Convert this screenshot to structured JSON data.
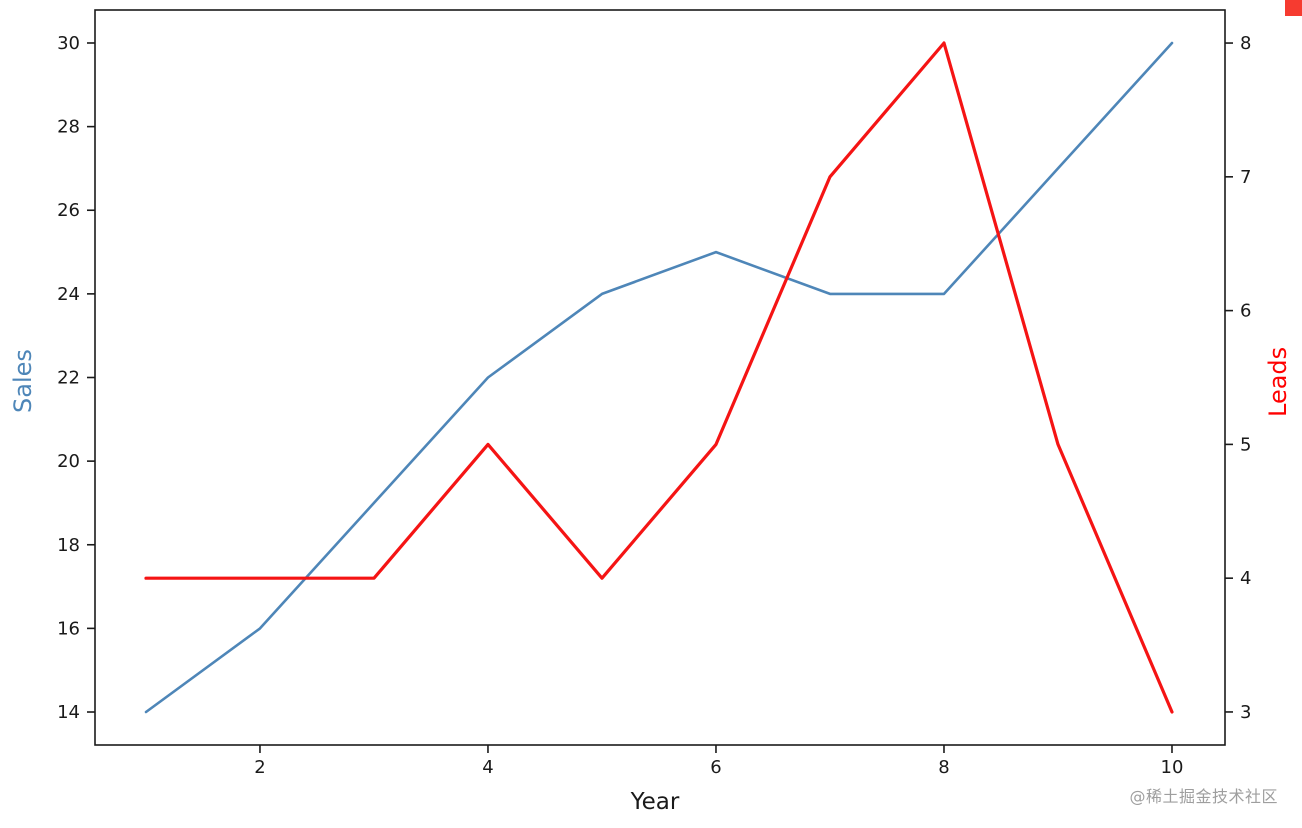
{
  "chart_data": {
    "type": "line",
    "title": "",
    "xlabel": "Year",
    "x": [
      1,
      2,
      3,
      4,
      5,
      6,
      7,
      8,
      9,
      10
    ],
    "x_ticks": [
      "2",
      "4",
      "6",
      "8",
      "10"
    ],
    "x_tick_values": [
      2,
      4,
      6,
      8,
      10
    ],
    "x_range": [
      0.553,
      10.465
    ],
    "grid": false,
    "legend": "none",
    "left_axis": {
      "label": "Sales",
      "color": "#4e86b8",
      "ticks": [
        14,
        16,
        18,
        20,
        22,
        24,
        26,
        28,
        30
      ],
      "range": [
        13.211,
        30.789
      ]
    },
    "right_axis": {
      "label": "Leads",
      "color": "#ff0000",
      "ticks": [
        3,
        4,
        5,
        6,
        7,
        8
      ],
      "range": [
        2.753,
        8.247
      ]
    },
    "series": [
      {
        "name": "Sales",
        "axis": "left",
        "color": "#4e86b8",
        "values": [
          14,
          16,
          19,
          22,
          24,
          25,
          24,
          24,
          27,
          30
        ]
      },
      {
        "name": "Leads",
        "axis": "right",
        "color": "#f51414",
        "values": [
          4,
          4,
          4,
          5,
          4,
          5,
          7,
          8,
          5,
          3
        ]
      }
    ]
  },
  "watermark": "@稀土掘金技术社区",
  "corner_badge_color": "#f63b30"
}
